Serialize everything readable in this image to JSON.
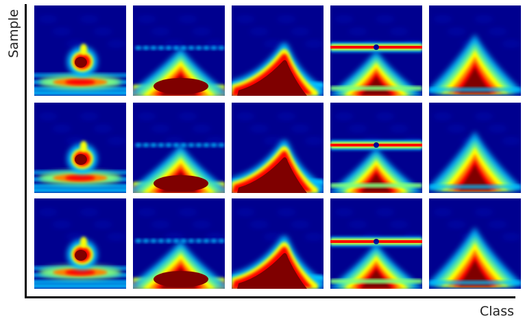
{
  "axes": {
    "y_label": "Sample",
    "x_label": "Class"
  },
  "grid": {
    "rows": 3,
    "cols": 5
  },
  "colormap": {
    "name": "jet",
    "stops": [
      "#00007f",
      "#0000ff",
      "#00bfff",
      "#7fff7f",
      "#ffff00",
      "#ff7f00",
      "#ff0000",
      "#7f0000"
    ]
  },
  "panels": [
    {
      "class": 1,
      "variant": "small-blob"
    },
    {
      "class": 2,
      "variant": "wide-peak-dotted-band"
    },
    {
      "class": 3,
      "variant": "skewed-peak"
    },
    {
      "class": 4,
      "variant": "peak-solid-band"
    },
    {
      "class": 5,
      "variant": "symmetric-cone"
    }
  ]
}
